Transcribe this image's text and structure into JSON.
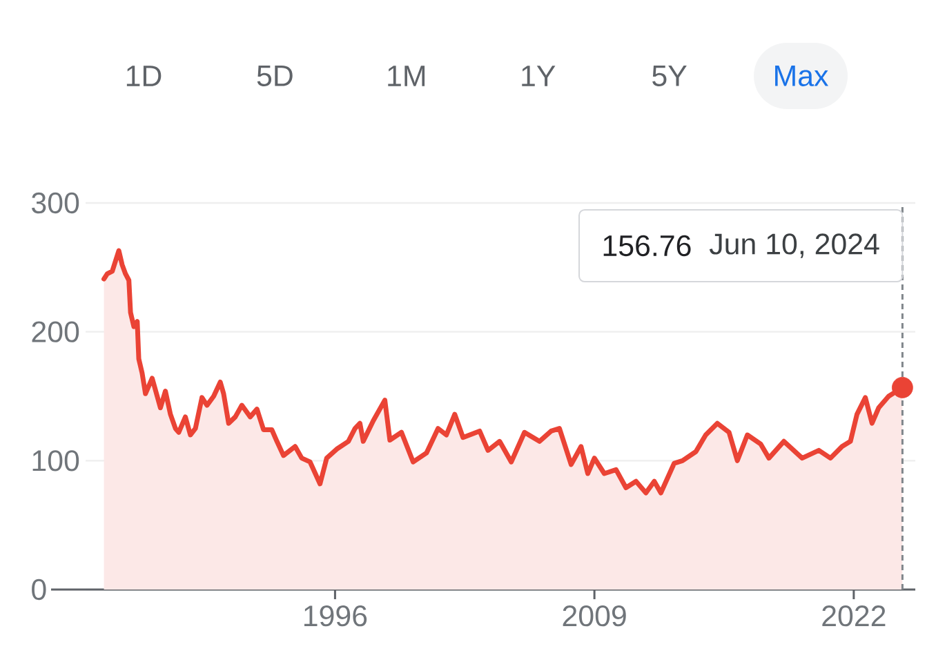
{
  "chart_data": {
    "type": "area",
    "annotations": [
      "1D",
      "5D",
      "1M",
      "1Y",
      "5Y",
      "Max",
      "156.76",
      "Jun 10, 2024"
    ],
    "series": [
      {
        "color": "#ea4335",
        "x": [
          "1984-06",
          "1984-08",
          "1984-11",
          "1985-03",
          "1985-05",
          "1985-07",
          "1985-09",
          "1985-10",
          "1985-12",
          "1986-02",
          "1986-03",
          "1986-05",
          "1986-07",
          "1986-11",
          "1987-02",
          "1987-04",
          "1987-07",
          "1987-10",
          "1988-01",
          "1988-03",
          "1988-07",
          "1988-10",
          "1989-01",
          "1989-05",
          "1989-08",
          "1989-12",
          "1990-04",
          "1990-06",
          "1990-09",
          "1991-01",
          "1991-05",
          "1991-10",
          "1992-02",
          "1992-06",
          "1992-11",
          "1993-02",
          "1993-06",
          "1994-01",
          "1994-05",
          "1994-10",
          "1995-04",
          "1995-08",
          "1996-02",
          "1996-09",
          "1997-01",
          "1997-04",
          "1997-06",
          "1997-12",
          "1998-07",
          "1998-10",
          "1999-05",
          "1999-12",
          "2000-08",
          "2001-03",
          "2001-08",
          "2002-01",
          "2002-06",
          "2003-04",
          "2003-09",
          "2004-04",
          "2004-11",
          "2005-07",
          "2006-04",
          "2006-11",
          "2007-04",
          "2007-11",
          "2008-05",
          "2008-09",
          "2009-01",
          "2009-07",
          "2010-02",
          "2010-08",
          "2011-02",
          "2011-08",
          "2012-01",
          "2012-05",
          "2013-01",
          "2013-06",
          "2014-02",
          "2014-08",
          "2015-03",
          "2015-10",
          "2016-03",
          "2016-09",
          "2017-05",
          "2017-10",
          "2018-07",
          "2019-06",
          "2020-04",
          "2020-11",
          "2021-06",
          "2021-11",
          "2022-03",
          "2022-08",
          "2022-12",
          "2023-04",
          "2023-10",
          "2024-06-10"
        ],
        "values": [
          241,
          245,
          247,
          263,
          252,
          245,
          240,
          215,
          204,
          208,
          179,
          168,
          152,
          164,
          150,
          141,
          154,
          136,
          125,
          122,
          134,
          120,
          125,
          149,
          143,
          150,
          161,
          152,
          129,
          134,
          143,
          134,
          140,
          124,
          124,
          115,
          104,
          111,
          102,
          99,
          82,
          102,
          109,
          115,
          125,
          129,
          115,
          131,
          147,
          116,
          122,
          99,
          106,
          125,
          120,
          136,
          118,
          123,
          108,
          115,
          99,
          122,
          115,
          123,
          125,
          97,
          111,
          90,
          102,
          90,
          93,
          79,
          84,
          75,
          84,
          75,
          98,
          100,
          107,
          120,
          129,
          122,
          100,
          120,
          113,
          102,
          115,
          102,
          108,
          102,
          111,
          115,
          136,
          149,
          129,
          141,
          150,
          156.76
        ]
      },
      {
        "type": "scatter",
        "color": "#ea4335",
        "marker": "circle",
        "x": [
          "2024-06-10"
        ],
        "values": [
          156.76
        ]
      }
    ],
    "xlim": [
      "1983-07",
      "2025-02"
    ],
    "xticks": [
      "1996",
      "2009",
      "2022"
    ],
    "ylim": [
      0,
      300
    ],
    "yticks": [
      0,
      100,
      200,
      300
    ],
    "grid": "y",
    "ref_lines": [
      {
        "axis": "x",
        "value": "2024-06-10",
        "color": "#80868b",
        "line_style": "dashed"
      }
    ]
  }
}
